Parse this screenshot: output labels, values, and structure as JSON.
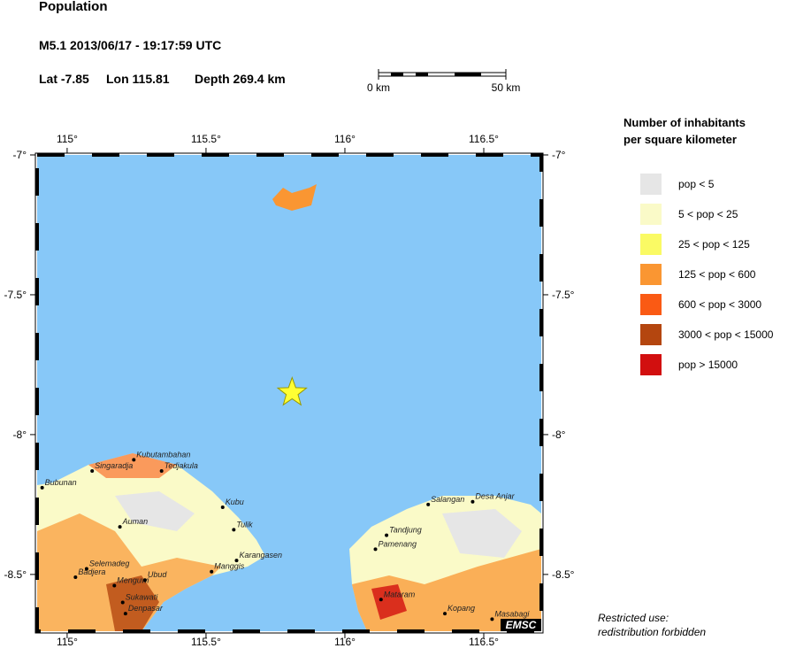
{
  "header": {
    "title": "Population",
    "event_line": "M5.1  2013/06/17 - 19:17:59 UTC",
    "lat_label": "Lat -7.85",
    "lon_label": "Lon 115.81",
    "depth_label": "Depth 269.4 km"
  },
  "scale": {
    "start_label": "0 km",
    "end_label": "50 km"
  },
  "map": {
    "lonlim": [
      114.892,
      116.707
    ],
    "latlim": [
      -7,
      -8.703
    ],
    "lon_ticks": [
      {
        "value": 115,
        "label": "115°"
      },
      {
        "value": 115.5,
        "label": "115.5°"
      },
      {
        "value": 116,
        "label": "116°"
      },
      {
        "value": 116.5,
        "label": "116.5°"
      }
    ],
    "lat_ticks": [
      {
        "value": -7,
        "label": "-7°"
      },
      {
        "value": -7.5,
        "label": "-7.5°"
      },
      {
        "value": -8,
        "label": "-8°"
      },
      {
        "value": -8.5,
        "label": "-8.5°"
      }
    ],
    "epicenter": {
      "lon": 115.81,
      "lat": -7.85
    },
    "places": [
      {
        "name": "Bubunan",
        "lon": 114.91,
        "lat": -8.19
      },
      {
        "name": "Singaradja",
        "lon": 115.09,
        "lat": -8.13
      },
      {
        "name": "Kubutambahan",
        "lon": 115.24,
        "lat": -8.09
      },
      {
        "name": "Tedjakula",
        "lon": 115.34,
        "lat": -8.13
      },
      {
        "name": "Kubu",
        "lon": 115.56,
        "lat": -8.26
      },
      {
        "name": "Tulik",
        "lon": 115.6,
        "lat": -8.34
      },
      {
        "name": "Auman",
        "lon": 115.19,
        "lat": -8.33
      },
      {
        "name": "Karangasen",
        "lon": 115.61,
        "lat": -8.45
      },
      {
        "name": "Manggis",
        "lon": 115.52,
        "lat": -8.49
      },
      {
        "name": "Selemadeg",
        "lon": 115.07,
        "lat": -8.48
      },
      {
        "name": "Badjera",
        "lon": 115.03,
        "lat": -8.51
      },
      {
        "name": "Menguwi",
        "lon": 115.17,
        "lat": -8.54
      },
      {
        "name": "Ubud",
        "lon": 115.28,
        "lat": -8.52
      },
      {
        "name": "Sukawati",
        "lon": 115.2,
        "lat": -8.6
      },
      {
        "name": "Denpasar",
        "lon": 115.21,
        "lat": -8.64
      },
      {
        "name": "Salangan",
        "lon": 116.3,
        "lat": -8.25
      },
      {
        "name": "Desa Anjar",
        "lon": 116.46,
        "lat": -8.24
      },
      {
        "name": "Tandjung",
        "lon": 116.15,
        "lat": -8.36
      },
      {
        "name": "Pamenang",
        "lon": 116.11,
        "lat": -8.41
      },
      {
        "name": "Mataram",
        "lon": 116.13,
        "lat": -8.59
      },
      {
        "name": "Kopang",
        "lon": 116.36,
        "lat": -8.64
      },
      {
        "name": "Masabagi",
        "lon": 116.53,
        "lat": -8.66
      }
    ]
  },
  "legend": {
    "title_line1": "Number of inhabitants",
    "title_line2": "per square kilometer",
    "entries": [
      {
        "label": "pop < 5",
        "color": "#e6e6e6"
      },
      {
        "label": "5 < pop < 25",
        "color": "#fafac8"
      },
      {
        "label": "25 < pop < 125",
        "color": "#fafa64"
      },
      {
        "label": "125 < pop < 600",
        "color": "#fa9632"
      },
      {
        "label": "600 < pop < 3000",
        "color": "#fa5a14"
      },
      {
        "label": "3000 < pop < 15000",
        "color": "#b4460f"
      },
      {
        "label": "pop > 15000",
        "color": "#d20f0f"
      }
    ]
  },
  "footer": {
    "brand": "EMSC",
    "note_line1": "Restricted use:",
    "note_line2": "redistribution forbidden"
  }
}
